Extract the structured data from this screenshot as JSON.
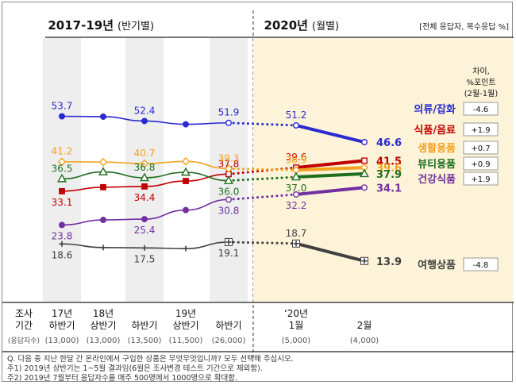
{
  "header": {
    "period1_title": "2017-19년",
    "period1_sub": "(반기별)",
    "period2_title": "2020년",
    "period2_sub": "(월별)",
    "scope_note": "[전체 응답자, 복수응답 %]"
  },
  "diff_header": [
    "차이,",
    "%포인트",
    "(2월-1월)"
  ],
  "x_axis": {
    "title_lines": [
      "조사",
      "기간"
    ],
    "sample_title": "(응답자수)",
    "columns": [
      {
        "lines": [
          "17년",
          "하반기"
        ],
        "n": "(13,000)"
      },
      {
        "lines": [
          "18년",
          "상반기"
        ],
        "n": "(13,000)"
      },
      {
        "lines": [
          "",
          "하반기"
        ],
        "n": "(13,500)"
      },
      {
        "lines": [
          "19년",
          "상반기"
        ],
        "n": "(11,500)"
      },
      {
        "lines": [
          "",
          "하반기"
        ],
        "n": "(26,000)"
      },
      {
        "lines": [
          "‘20년",
          "1월"
        ],
        "n": "(5,000)"
      },
      {
        "lines": [
          "",
          "2월"
        ],
        "n": "(4,000)"
      }
    ]
  },
  "footnotes": [
    "Q. 다음 중 지난 한달 간 온라인에서 구입한 상품은 무엇무엇입니까? 모두 선택해 주십시오.",
    "주1) 2019년 상반기는 1~5월 결과임(6월은 조사변경 테스트 기간으로 제외함).",
    "주2) 2019년 7월부터 응답자수를 매주 500명에서 1000명으로 확대함."
  ],
  "chart_data": {
    "type": "line",
    "categories": [
      "17년 하반기",
      "18년 상반기",
      "18년 하반기",
      "19년 상반기",
      "19년 하반기",
      "20년 1월",
      "20년 2월"
    ],
    "ylabel": "",
    "series": [
      {
        "name": "의류/잡화",
        "color": "#2a2ad0",
        "marker": "circle",
        "values": [
          53.7,
          53.6,
          52.4,
          51.5,
          51.9,
          51.2,
          46.6
        ],
        "labels": [
          "53.7",
          "",
          "52.4",
          "",
          "51.9",
          "51.2",
          "46.6"
        ],
        "diff": "-4.6"
      },
      {
        "name": "식품/음료",
        "color": "#c00000",
        "marker": "square",
        "values": [
          33.1,
          34.2,
          34.4,
          35.9,
          37.8,
          39.6,
          41.5
        ],
        "labels": [
          "33.1",
          "",
          "34.4",
          "",
          "37.8",
          "39.6",
          "41.5"
        ],
        "diff": "+1.9"
      },
      {
        "name": "생활용품",
        "color": "#f2a21e",
        "marker": "diamond",
        "values": [
          41.2,
          41.1,
          40.7,
          41.3,
          39.3,
          38.9,
          39.6
        ],
        "labels": [
          "41.2",
          "",
          "40.7",
          "",
          "39.3",
          "38.9",
          "39.6"
        ],
        "diff": "+0.7"
      },
      {
        "name": "뷰티용품",
        "color": "#1f6e1f",
        "marker": "triangle",
        "values": [
          36.5,
          38.4,
          36.8,
          38.3,
          36.0,
          37.0,
          37.9
        ],
        "labels": [
          "36.5",
          "",
          "36.8",
          "",
          "36.0",
          "37.0",
          "37.9"
        ],
        "diff": "+0.9"
      },
      {
        "name": "건강식품",
        "color": "#7030a0",
        "marker": "circle",
        "values": [
          23.8,
          25.2,
          25.4,
          27.9,
          30.8,
          32.2,
          34.1
        ],
        "labels": [
          "23.8",
          "",
          "25.4",
          "",
          "30.8",
          "32.2",
          "34.1"
        ],
        "diff": "+1.9"
      },
      {
        "name": "여행상품",
        "color": "#404040",
        "marker": "plus",
        "values": [
          18.6,
          17.6,
          17.5,
          17.3,
          19.1,
          18.7,
          13.9
        ],
        "labels": [
          "18.6",
          "",
          "17.5",
          "",
          "19.1",
          "18.7",
          "13.9"
        ],
        "diff": "-4.8"
      }
    ],
    "legend": "right"
  }
}
